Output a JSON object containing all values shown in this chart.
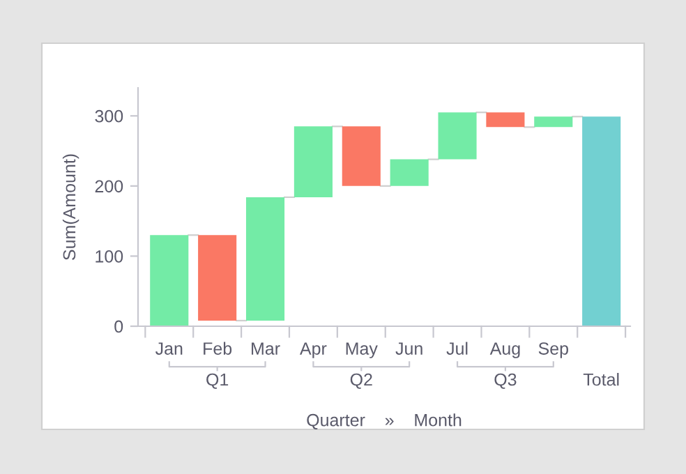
{
  "chart_data": {
    "type": "bar",
    "ylabel": "Sum(Amount)",
    "xlabel": "Quarter    »    Month",
    "categories": [
      "Jan",
      "Feb",
      "Mar",
      "Apr",
      "May",
      "Jun",
      "Jul",
      "Aug",
      "Sep",
      null
    ],
    "base": [
      0,
      130,
      8,
      184,
      285,
      200,
      238,
      305,
      284,
      0
    ],
    "values": [
      130,
      -122,
      176,
      101,
      -85,
      38,
      67,
      -21,
      15,
      299
    ],
    "colors": [
      "#73eba6",
      "#fa7864",
      "#73eba6",
      "#73eba6",
      "#fa7864",
      "#73eba6",
      "#73eba6",
      "#fa7864",
      "#73eba6",
      "#72d0d1"
    ],
    "ylim": [
      0,
      340
    ],
    "yticks": [
      0,
      100,
      200,
      300
    ],
    "grid": false,
    "annotations": [
      "Q1",
      "Q2",
      "Q3",
      "Total"
    ]
  }
}
